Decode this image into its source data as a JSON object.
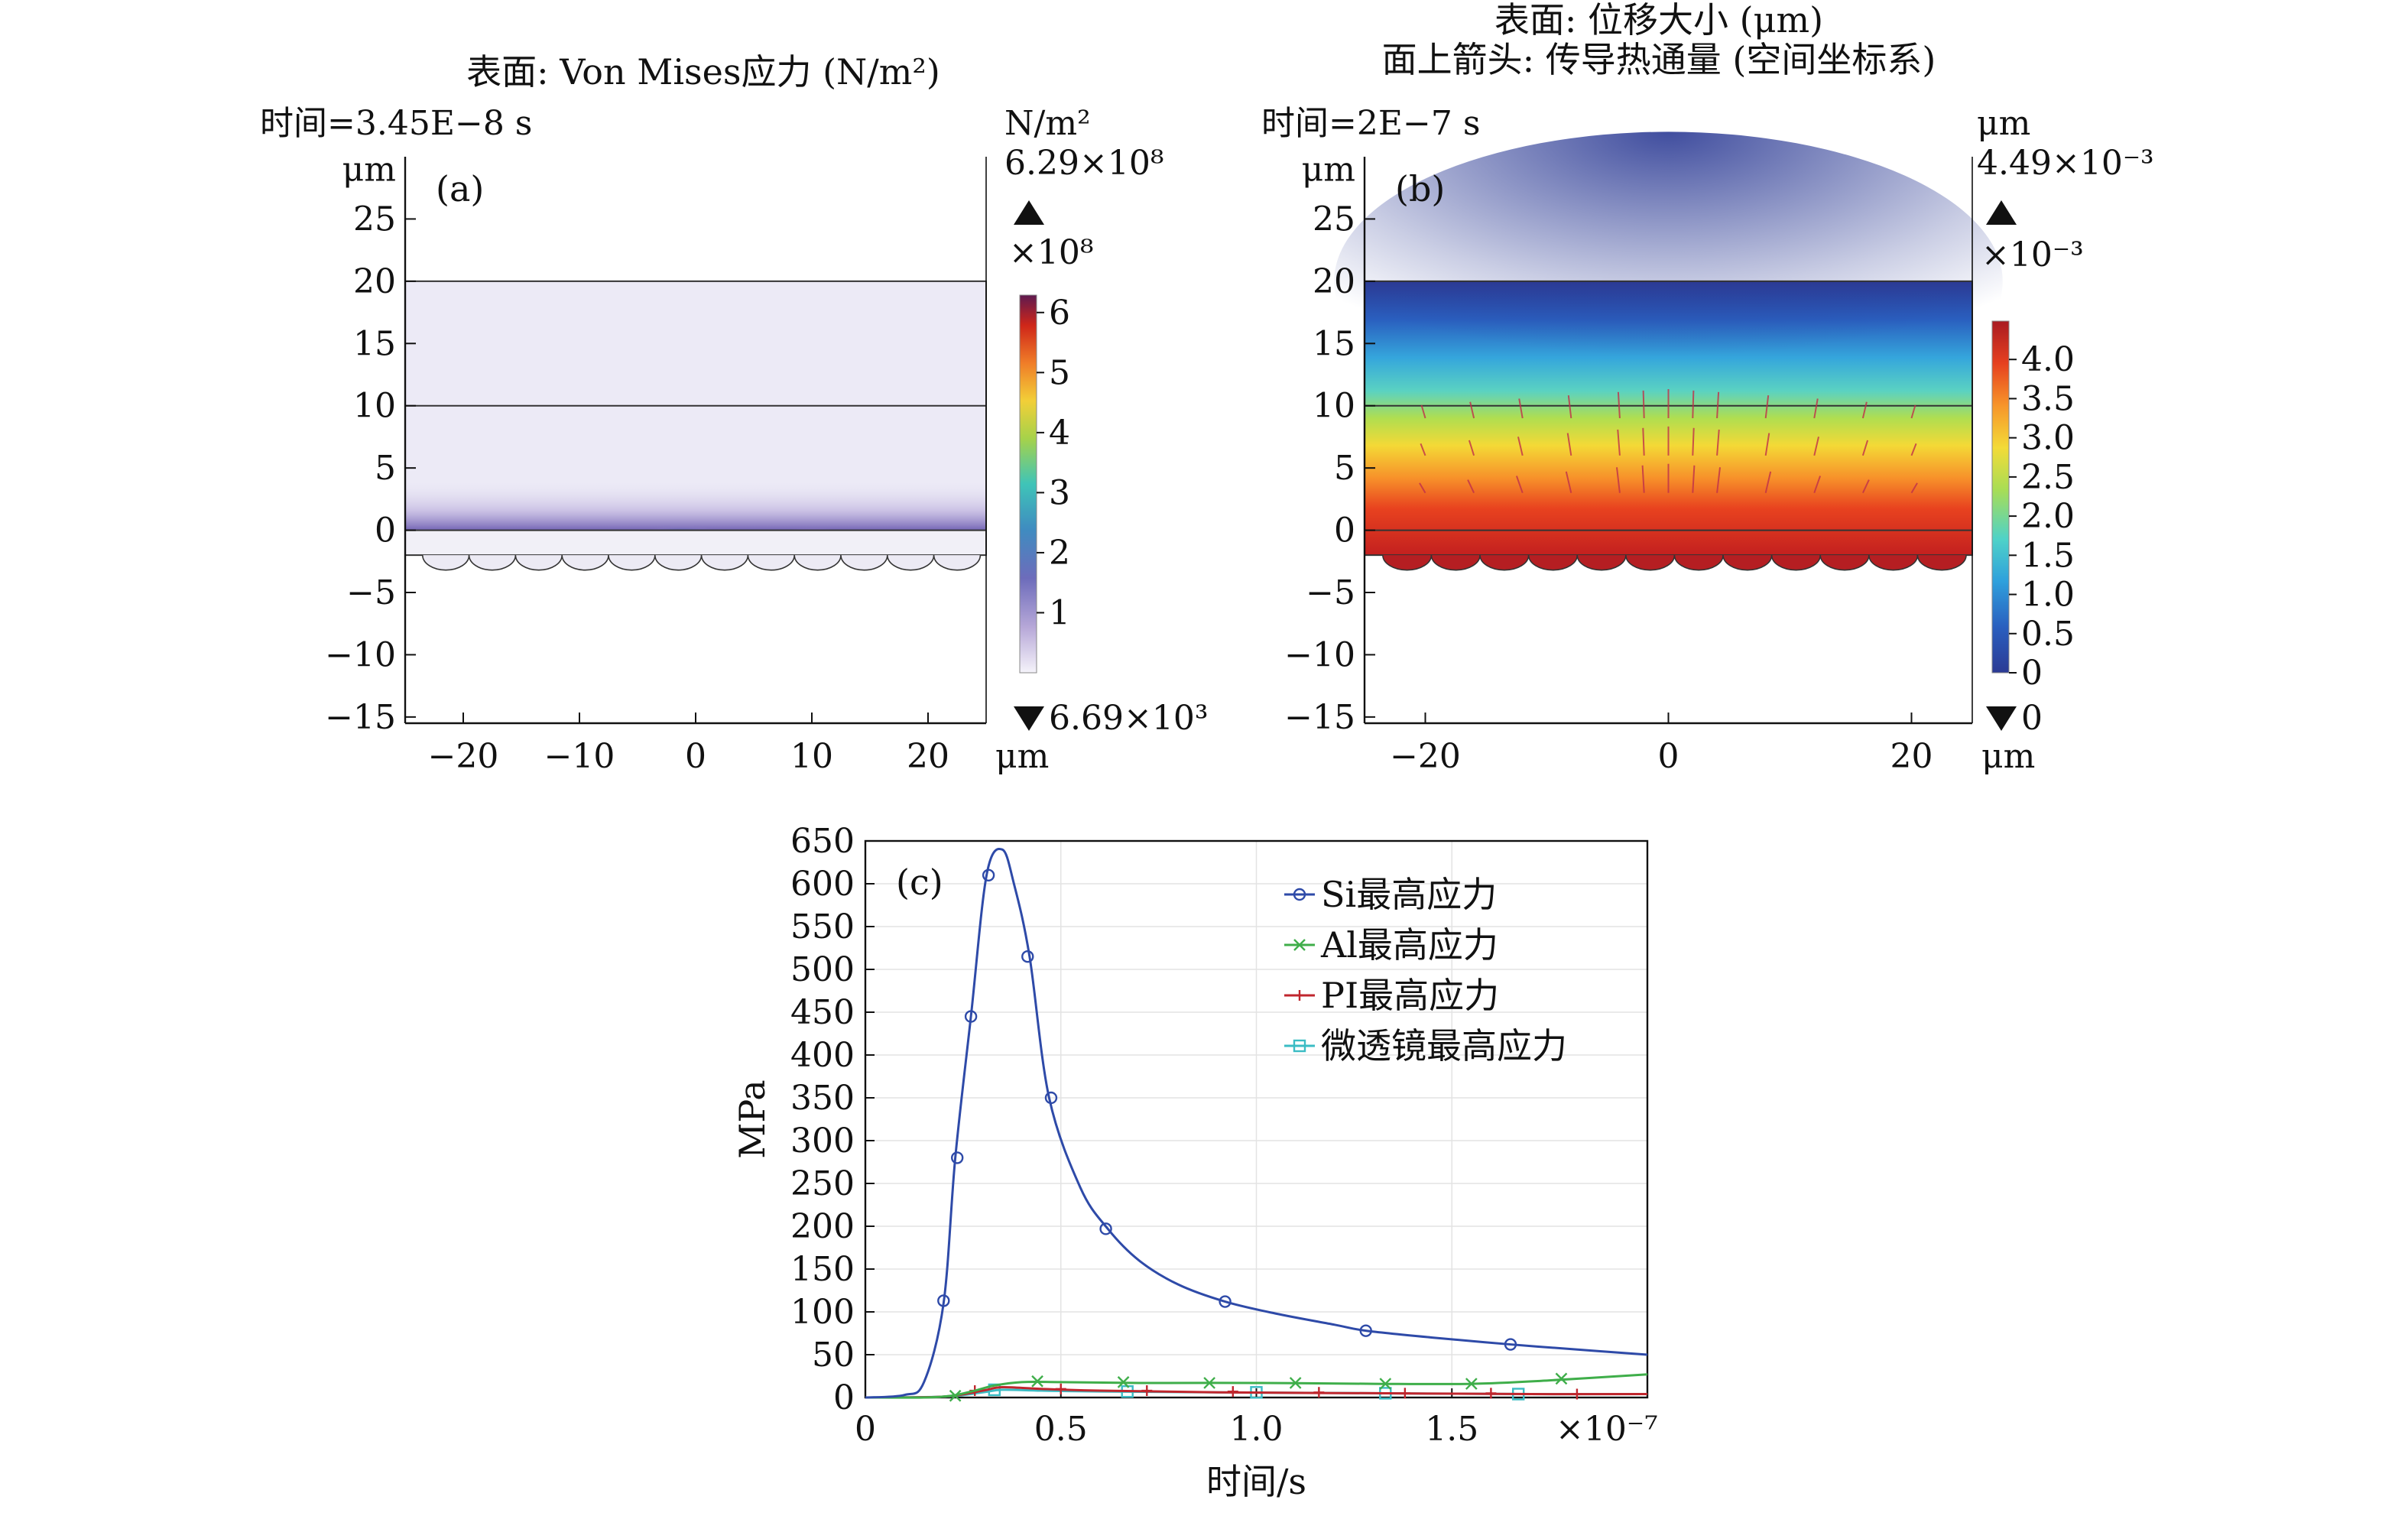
{
  "chart_data": [
    {
      "id": "a",
      "type": "heatmap",
      "panel_label": "(a)",
      "title": "表面: Von Mises应力 (N/m²)",
      "time_label": "时间=3.45E−8 s",
      "xunit": "μm",
      "yunit": "μm",
      "xlim": [
        -25,
        25
      ],
      "ylim": [
        -15.5,
        30
      ],
      "xticks": [
        "−20",
        "−10",
        "0",
        "10",
        "20"
      ],
      "xtick_values": [
        -20,
        -10,
        0,
        10,
        20
      ],
      "yticks": [
        "25",
        "20",
        "15",
        "10",
        "5",
        "0",
        "−5",
        "−10",
        "−15"
      ],
      "ytick_values": [
        25,
        20,
        15,
        10,
        5,
        0,
        -5,
        -10,
        -15
      ],
      "colorbar": {
        "unit": "N/m²",
        "max_label": "6.29×10⁸",
        "multiplier": "×10⁸",
        "ticks": [
          "6",
          "5",
          "4",
          "3",
          "2",
          "1"
        ],
        "tick_values": [
          6,
          5,
          4,
          3,
          2,
          1
        ],
        "min_label": "6.69×10³",
        "range": [
          0,
          6.29
        ],
        "colormap": [
          "#f5f3fa",
          "#9b86c8",
          "#4c5fb2",
          "#3fb6c4",
          "#7cc95a",
          "#f2d23d",
          "#f08a2a",
          "#d12a1a",
          "#6d1c55"
        ]
      }
    },
    {
      "id": "b",
      "type": "heatmap",
      "panel_label": "(b)",
      "title": "表面: 位移大小 (μm)",
      "subtitle": "面上箭头: 传导热通量 (空间坐标系)",
      "time_label": "时间=2E−7 s",
      "xunit": "μm",
      "yunit": "μm",
      "xlim": [
        -25,
        25
      ],
      "ylim": [
        -15.5,
        30
      ],
      "xticks": [
        "−20",
        "0",
        "20"
      ],
      "xtick_values": [
        -20,
        0,
        20
      ],
      "yticks": [
        "25",
        "20",
        "15",
        "10",
        "5",
        "0",
        "−5",
        "−10",
        "−15"
      ],
      "ytick_values": [
        25,
        20,
        15,
        10,
        5,
        0,
        -5,
        -10,
        -15
      ],
      "colorbar": {
        "unit": "μm",
        "max_label": "4.49×10⁻³",
        "multiplier": "×10⁻³",
        "ticks": [
          "4.0",
          "3.5",
          "3.0",
          "2.5",
          "2.0",
          "1.5",
          "1.0",
          "0.5",
          "0"
        ],
        "tick_values": [
          4.0,
          3.5,
          3.0,
          2.5,
          2.0,
          1.5,
          1.0,
          0.5,
          0
        ],
        "min_label": "0",
        "range": [
          0,
          4.49
        ],
        "colormap": [
          "#2b3a94",
          "#2a67c2",
          "#35a6dc",
          "#4fd0c6",
          "#a4dc57",
          "#f1dc39",
          "#f79b2a",
          "#e8421f",
          "#b51e22"
        ]
      }
    },
    {
      "id": "c",
      "type": "line",
      "panel_label": "(c)",
      "xlabel": "时间/s",
      "ylabel": "MPa",
      "x_multiplier": "×10⁻⁷",
      "xlim": [
        0,
        2.0
      ],
      "ylim": [
        0,
        650
      ],
      "xticks": [
        "0",
        "0.5",
        "1.0",
        "1.5"
      ],
      "xtick_values": [
        0,
        0.5,
        1.0,
        1.5
      ],
      "yticks": [
        "650",
        "600",
        "550",
        "500",
        "450",
        "400",
        "350",
        "300",
        "250",
        "200",
        "150",
        "100",
        "50",
        "0"
      ],
      "ytick_values": [
        650,
        600,
        550,
        500,
        450,
        400,
        350,
        300,
        250,
        200,
        150,
        100,
        50,
        0
      ],
      "grid": true,
      "legend_position": "top-right",
      "series": [
        {
          "name": "Si最高应力",
          "color": "#2e4aa8",
          "marker": "circle",
          "x": [
            0,
            0.1,
            0.15,
            0.2,
            0.23,
            0.27,
            0.31,
            0.35,
            0.38,
            0.42,
            0.47,
            0.55,
            0.62,
            0.7,
            0.8,
            0.92,
            1.05,
            1.2,
            1.28,
            1.45,
            1.65,
            1.85,
            2.0
          ],
          "y": [
            0,
            3,
            18,
            110,
            280,
            445,
            610,
            640,
            600,
            515,
            350,
            245,
            197,
            160,
            132,
            112,
            98,
            85,
            78,
            70,
            62,
            55,
            50
          ],
          "marker_x": [
            0.2,
            0.235,
            0.27,
            0.315,
            0.415,
            0.475,
            0.615,
            0.92,
            1.28,
            1.65
          ],
          "marker_y": [
            113,
            280,
            445,
            610,
            515,
            350,
            197,
            112,
            78,
            62
          ]
        },
        {
          "name": "Al最高应力",
          "color": "#3fae4a",
          "marker": "x",
          "x": [
            0,
            0.15,
            0.22,
            0.28,
            0.33,
            0.4,
            0.5,
            0.7,
            1.0,
            1.3,
            1.55,
            1.75,
            2.0
          ],
          "y": [
            0,
            0,
            2,
            8,
            14,
            18,
            18,
            17,
            17,
            16,
            16,
            20,
            27
          ],
          "marker_x": [
            0.23,
            0.44,
            0.66,
            0.88,
            1.1,
            1.33,
            1.55,
            1.78
          ],
          "marker_y": [
            2,
            19,
            18,
            17,
            17,
            16,
            16,
            22
          ]
        },
        {
          "name": "PI最高应力",
          "color": "#c0262d",
          "marker": "plus",
          "x": [
            0,
            0.2,
            0.3,
            0.35,
            0.45,
            0.6,
            0.9,
            1.3,
            1.7,
            2.0
          ],
          "y": [
            0,
            1,
            8,
            12,
            10,
            8,
            6,
            5,
            4,
            4
          ],
          "marker_x": [
            0.28,
            0.5,
            0.72,
            0.94,
            1.16,
            1.38,
            1.6,
            1.82
          ],
          "marker_y": [
            8,
            10,
            8,
            7,
            6,
            5,
            5,
            4
          ]
        },
        {
          "name": "微透镜最高应力",
          "color": "#3bbcc4",
          "marker": "square",
          "x": [
            0,
            0.2,
            0.3,
            0.35,
            0.45,
            0.6,
            0.9,
            1.3,
            1.7,
            2.0
          ],
          "y": [
            0,
            1,
            6,
            9,
            8,
            7,
            6,
            5,
            4,
            4
          ],
          "marker_x": [
            0.33,
            0.67,
            1.0,
            1.33,
            1.67
          ],
          "marker_y": [
            9,
            7,
            6,
            5,
            4
          ]
        }
      ]
    }
  ]
}
